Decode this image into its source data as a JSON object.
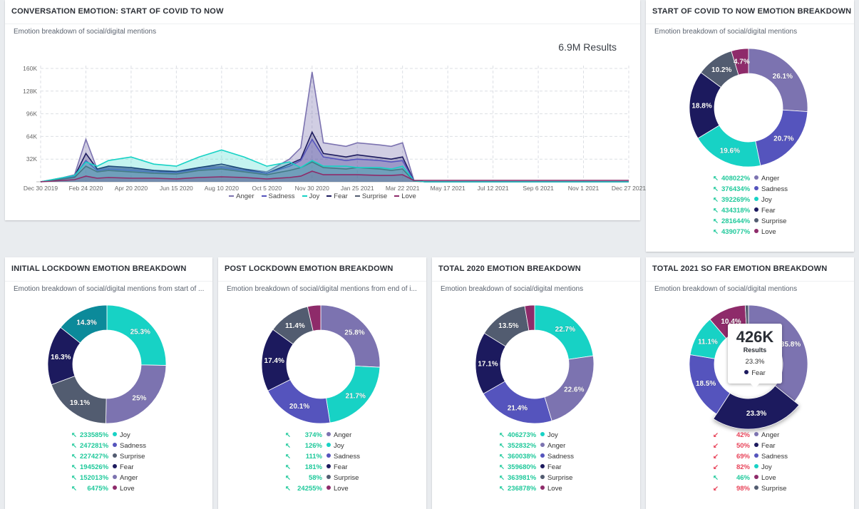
{
  "colors": {
    "Anger": "#7c73b0",
    "Sadness": "#5554bd",
    "Joy": "#17d2c5",
    "Fear": "#1c1a5e",
    "Surprise": "#525c70",
    "Love": "#8e2b6a",
    "Joy_alt": "#0c8a9a",
    "up": "#1fc99b",
    "down": "#e8445a"
  },
  "main": {
    "title": "CONVERSATION EMOTION: START OF COVID TO NOW",
    "subtitle": "Emotion breakdown of social/digital mentions",
    "results": "6.9M Results"
  },
  "chart_data": [
    {
      "type": "area",
      "title": "CONVERSATION EMOTION: START OF COVID TO NOW",
      "x_ticks": [
        "Dec 30 2019",
        "Feb 24 2020",
        "Apr 20 2020",
        "Jun 15 2020",
        "Aug 10 2020",
        "Oct 5 2020",
        "Nov 30 2020",
        "Jan 25 2021",
        "Mar 22 2021",
        "May 17 2021",
        "Jul 12 2021",
        "Sep 6 2021",
        "Nov 1 2021",
        "Dec 27 2021"
      ],
      "y_ticks": [
        "32K",
        "64K",
        "96K",
        "128K",
        "160K"
      ],
      "ylim": [
        0,
        160000
      ],
      "x": [
        "Dec 30 2019",
        "Jan 27 2020",
        "Feb 10 2020",
        "Feb 24 2020",
        "Mar 9 2020",
        "Mar 23 2020",
        "Apr 20 2020",
        "May 18 2020",
        "Jun 15 2020",
        "Jul 13 2020",
        "Aug 10 2020",
        "Sep 7 2020",
        "Oct 5 2020",
        "Nov 2 2020",
        "Nov 16 2020",
        "Nov 30 2020",
        "Dec 14 2020",
        "Jan 11 2021",
        "Jan 25 2021",
        "Feb 22 2021",
        "Mar 8 2021",
        "Mar 22 2021",
        "Apr 5 2021",
        "Apr 19 2021",
        "May 17 2021",
        "Jul 12 2021",
        "Sep 6 2021",
        "Nov 1 2021",
        "Dec 27 2021"
      ],
      "series": [
        {
          "name": "Anger",
          "values": [
            0,
            6000,
            10000,
            60000,
            18000,
            20000,
            18000,
            16000,
            15000,
            20000,
            22000,
            18000,
            14000,
            32000,
            48000,
            155000,
            55000,
            50000,
            55000,
            52000,
            50000,
            55000,
            2000,
            0,
            0,
            0,
            0,
            0,
            0
          ]
        },
        {
          "name": "Sadness",
          "values": [
            0,
            5000,
            8000,
            30000,
            16000,
            18000,
            16000,
            14000,
            13000,
            18000,
            20000,
            16000,
            12000,
            22000,
            30000,
            60000,
            35000,
            30000,
            32000,
            30000,
            28000,
            30000,
            1500,
            0,
            0,
            0,
            0,
            0,
            0
          ]
        },
        {
          "name": "Joy",
          "values": [
            0,
            6000,
            9000,
            28000,
            22000,
            30000,
            35000,
            25000,
            22000,
            35000,
            45000,
            35000,
            22000,
            28000,
            20000,
            30000,
            22000,
            22000,
            20000,
            20000,
            18000,
            22000,
            1500,
            0,
            0,
            0,
            0,
            0,
            0
          ]
        },
        {
          "name": "Fear",
          "values": [
            0,
            5000,
            8000,
            40000,
            18000,
            22000,
            20000,
            16000,
            14000,
            20000,
            25000,
            18000,
            12000,
            25000,
            32000,
            70000,
            40000,
            35000,
            38000,
            34000,
            32000,
            35000,
            1500,
            0,
            0,
            0,
            0,
            0,
            0
          ]
        },
        {
          "name": "Surprise",
          "values": [
            0,
            4000,
            6000,
            22000,
            14000,
            16000,
            14000,
            12000,
            11000,
            16000,
            18000,
            14000,
            10000,
            16000,
            20000,
            28000,
            20000,
            18000,
            20000,
            18000,
            16000,
            18000,
            1000,
            0,
            0,
            0,
            0,
            0,
            0
          ]
        },
        {
          "name": "Love",
          "values": [
            0,
            2000,
            3000,
            8000,
            5000,
            6000,
            5000,
            5000,
            4000,
            6000,
            7000,
            6000,
            4000,
            6000,
            8000,
            15000,
            10000,
            10000,
            10000,
            9000,
            9000,
            10000,
            2000,
            2000,
            2000,
            2000,
            2000,
            2000,
            2000
          ]
        }
      ]
    },
    {
      "type": "pie",
      "title": "START OF COVID TO NOW EMOTION BREAKDOWN",
      "slices": [
        {
          "name": "Anger",
          "value": 26.1,
          "label": "26.1%"
        },
        {
          "name": "Sadness",
          "value": 20.7,
          "label": "20.7%"
        },
        {
          "name": "Joy",
          "value": 19.6,
          "label": "19.6%"
        },
        {
          "name": "Fear",
          "value": 18.8,
          "label": "18.8%"
        },
        {
          "name": "Surprise",
          "value": 10.2,
          "label": "10.2%"
        },
        {
          "name": "Love",
          "value": 4.7,
          "label": "4.7%"
        }
      ],
      "legend": [
        {
          "pct": "408022%",
          "dir": "up",
          "name": "Anger"
        },
        {
          "pct": "376434%",
          "dir": "up",
          "name": "Sadness"
        },
        {
          "pct": "392269%",
          "dir": "up",
          "name": "Joy"
        },
        {
          "pct": "434318%",
          "dir": "up",
          "name": "Fear"
        },
        {
          "pct": "281644%",
          "dir": "up",
          "name": "Surprise"
        },
        {
          "pct": "439077%",
          "dir": "up",
          "name": "Love"
        }
      ]
    },
    {
      "type": "pie",
      "title": "INITIAL LOCKDOWN EMOTION BREAKDOWN",
      "slices": [
        {
          "name": "Joy",
          "value": 25.3,
          "label": "25.3%"
        },
        {
          "name": "Anger",
          "value": 25,
          "label": "25%"
        },
        {
          "name": "Surprise",
          "value": 19.1,
          "label": "19.1%"
        },
        {
          "name": "Fear",
          "value": 16.3,
          "label": "16.3%"
        },
        {
          "name": "Joy_alt",
          "value": 14.3,
          "label": "14.3%"
        }
      ],
      "legend": [
        {
          "pct": "233585%",
          "dir": "up",
          "name": "Joy"
        },
        {
          "pct": "247281%",
          "dir": "up",
          "name": "Sadness"
        },
        {
          "pct": "227427%",
          "dir": "up",
          "name": "Surprise"
        },
        {
          "pct": "194526%",
          "dir": "up",
          "name": "Fear"
        },
        {
          "pct": "152013%",
          "dir": "up",
          "name": "Anger"
        },
        {
          "pct": "6475%",
          "dir": "up",
          "name": "Love"
        }
      ]
    },
    {
      "type": "pie",
      "title": "POST LOCKDOWN EMOTION BREAKDOWN",
      "slices": [
        {
          "name": "Anger",
          "value": 25.8,
          "label": "25.8%"
        },
        {
          "name": "Joy",
          "value": 21.7,
          "label": "21.7%"
        },
        {
          "name": "Sadness",
          "value": 20.1,
          "label": "20.1%"
        },
        {
          "name": "Fear",
          "value": 17.4,
          "label": "17.4%"
        },
        {
          "name": "Surprise",
          "value": 11.4,
          "label": "11.4%"
        },
        {
          "name": "Love",
          "value": 3.6,
          "label": ""
        }
      ],
      "legend": [
        {
          "pct": "374%",
          "dir": "up",
          "name": "Anger"
        },
        {
          "pct": "126%",
          "dir": "up",
          "name": "Joy"
        },
        {
          "pct": "111%",
          "dir": "up",
          "name": "Sadness"
        },
        {
          "pct": "181%",
          "dir": "up",
          "name": "Fear"
        },
        {
          "pct": "58%",
          "dir": "up",
          "name": "Surprise"
        },
        {
          "pct": "24255%",
          "dir": "up",
          "name": "Love"
        }
      ]
    },
    {
      "type": "pie",
      "title": "TOTAL 2020 EMOTION BREAKDOWN",
      "slices": [
        {
          "name": "Joy",
          "value": 22.7,
          "label": "22.7%"
        },
        {
          "name": "Anger",
          "value": 22.6,
          "label": "22.6%"
        },
        {
          "name": "Sadness",
          "value": 21.4,
          "label": "21.4%"
        },
        {
          "name": "Fear",
          "value": 17.1,
          "label": "17.1%"
        },
        {
          "name": "Surprise",
          "value": 13.5,
          "label": "13.5%"
        },
        {
          "name": "Love",
          "value": 2.7,
          "label": ""
        }
      ],
      "legend": [
        {
          "pct": "406273%",
          "dir": "up",
          "name": "Joy"
        },
        {
          "pct": "352832%",
          "dir": "up",
          "name": "Anger"
        },
        {
          "pct": "360038%",
          "dir": "up",
          "name": "Sadness"
        },
        {
          "pct": "359680%",
          "dir": "up",
          "name": "Fear"
        },
        {
          "pct": "363981%",
          "dir": "up",
          "name": "Surprise"
        },
        {
          "pct": "236878%",
          "dir": "up",
          "name": "Love"
        }
      ]
    },
    {
      "type": "pie",
      "title": "TOTAL 2021 SO FAR EMOTION BREAKDOWN",
      "slices": [
        {
          "name": "Anger",
          "value": 35.8,
          "label": "35.8%"
        },
        {
          "name": "Fear",
          "value": 23.3,
          "label": "23.3%",
          "highlight": true
        },
        {
          "name": "Sadness",
          "value": 18.5,
          "label": "18.5%"
        },
        {
          "name": "Joy",
          "value": 11.1,
          "label": "11.1%"
        },
        {
          "name": "Love",
          "value": 10.4,
          "label": "10.4%"
        },
        {
          "name": "Surprise",
          "value": 0.9,
          "label": ""
        }
      ],
      "legend": [
        {
          "pct": "42%",
          "dir": "down",
          "name": "Anger"
        },
        {
          "pct": "50%",
          "dir": "down",
          "name": "Fear"
        },
        {
          "pct": "69%",
          "dir": "down",
          "name": "Sadness"
        },
        {
          "pct": "82%",
          "dir": "down",
          "name": "Joy"
        },
        {
          "pct": "46%",
          "dir": "up",
          "name": "Love"
        },
        {
          "pct": "98%",
          "dir": "down",
          "name": "Surprise"
        }
      ]
    }
  ],
  "donut_panels": [
    {
      "title": "START OF COVID TO NOW EMOTION BREAKDOWN",
      "subtitle": "Emotion breakdown of social/digital mentions"
    },
    {
      "title": "INITIAL LOCKDOWN EMOTION BREAKDOWN",
      "subtitle": "Emotion breakdown of social/digital mentions from start of ..."
    },
    {
      "title": "POST LOCKDOWN EMOTION BREAKDOWN",
      "subtitle": "Emotion breakdown of social/digital mentions from end of i..."
    },
    {
      "title": "TOTAL 2020 EMOTION BREAKDOWN",
      "subtitle": "Emotion breakdown of social/digital mentions"
    },
    {
      "title": "TOTAL 2021 SO FAR EMOTION BREAKDOWN",
      "subtitle": "Emotion breakdown of social/digital mentions"
    }
  ],
  "tooltip": {
    "value": "426K",
    "label": "Results",
    "pct": "23.3%",
    "series": "Fear"
  }
}
